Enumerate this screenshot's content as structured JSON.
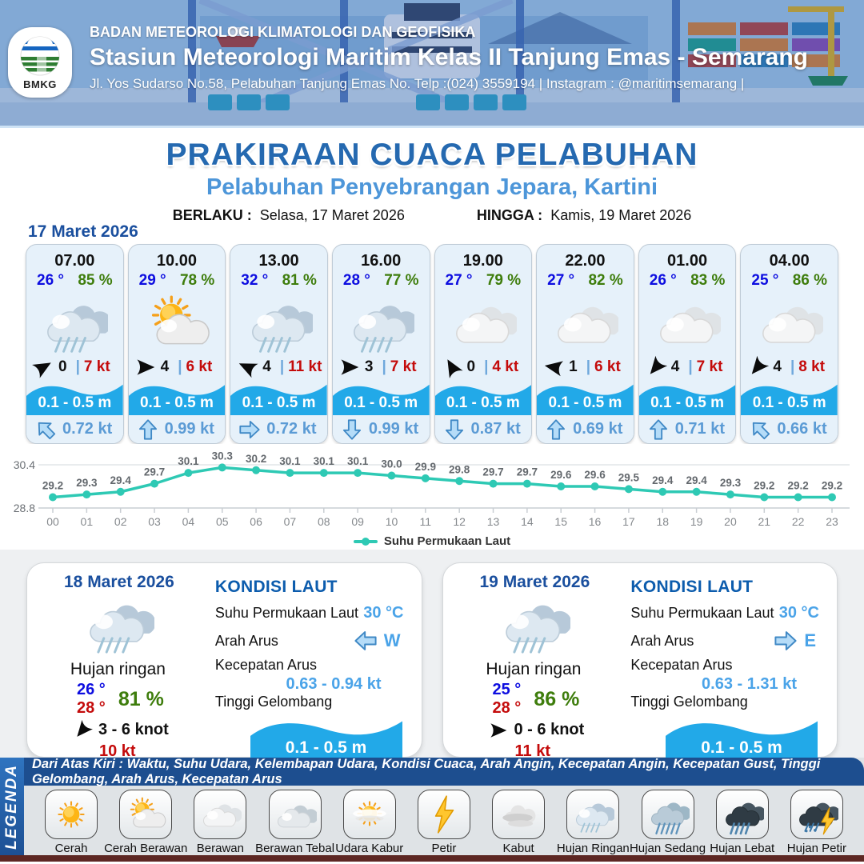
{
  "header": {
    "logo_label": "BMKG",
    "agency": "BADAN METEOROLOGI KLIMATOLOGI DAN GEOFISIKA",
    "station": "Stasiun Meteorologi Maritim Kelas II Tanjung Emas - Semarang",
    "address": "Jl. Yos Sudarso No.58, Pelabuhan Tanjung Emas No. Telp :(024) 3559194 | Instagram : @maritimsemarang |"
  },
  "title": {
    "main": "PRAKIRAAN CUACA PELABUHAN",
    "subtitle": "Pelabuhan Penyebrangan Jepara, Kartini",
    "valid_from_label": "BERLAKU :",
    "valid_from": "Selasa, 17 Maret 2026",
    "valid_to_label": "HINGGA :",
    "valid_to": "Kamis, 19 Maret 2026"
  },
  "ui": {
    "wind_sep": "|"
  },
  "forecast": {
    "date": "17 Maret 2026",
    "cards": [
      {
        "time": "07.00",
        "temp": "26 °",
        "humidity": "85 %",
        "icon": "hujan-ringan",
        "wind_dir_deg": -30,
        "wind": "0",
        "gust": "7 kt",
        "wave": "0.1 - 0.5 m",
        "current_dir_deg": -45,
        "current": "0.72 kt"
      },
      {
        "time": "10.00",
        "temp": "29 °",
        "humidity": "78 %",
        "icon": "cerah-berawan",
        "wind_dir_deg": 0,
        "wind": "4",
        "gust": "6 kt",
        "wave": "0.1 - 0.5 m",
        "current_dir_deg": 0,
        "current": "0.99 kt"
      },
      {
        "time": "13.00",
        "temp": "32 °",
        "humidity": "81 %",
        "icon": "hujan-ringan",
        "wind_dir_deg": 205,
        "wind": "4",
        "gust": "11 kt",
        "wave": "0.1 - 0.5 m",
        "current_dir_deg": 90,
        "current": "0.72 kt"
      },
      {
        "time": "16.00",
        "temp": "28 °",
        "humidity": "77 %",
        "icon": "hujan-ringan",
        "wind_dir_deg": 0,
        "wind": "3",
        "gust": "7 kt",
        "wave": "0.1 - 0.5 m",
        "current_dir_deg": 180,
        "current": "0.99 kt"
      },
      {
        "time": "19.00",
        "temp": "27 °",
        "humidity": "79 %",
        "icon": "berawan",
        "wind_dir_deg": -120,
        "wind": "0",
        "gust": "4 kt",
        "wave": "0.1 - 0.5 m",
        "current_dir_deg": 180,
        "current": "0.87 kt"
      },
      {
        "time": "22.00",
        "temp": "27 °",
        "humidity": "82 %",
        "icon": "berawan",
        "wind_dir_deg": 190,
        "wind": "1",
        "gust": "6 kt",
        "wave": "0.1 - 0.5 m",
        "current_dir_deg": 0,
        "current": "0.69 kt"
      },
      {
        "time": "01.00",
        "temp": "26 °",
        "humidity": "83 %",
        "icon": "berawan",
        "wind_dir_deg": 130,
        "wind": "4",
        "gust": "7 kt",
        "wave": "0.1 - 0.5 m",
        "current_dir_deg": 0,
        "current": "0.71 kt"
      },
      {
        "time": "04.00",
        "temp": "25 °",
        "humidity": "86 %",
        "icon": "berawan",
        "wind_dir_deg": 130,
        "wind": "4",
        "gust": "8 kt",
        "wave": "0.1 - 0.5 m",
        "current_dir_deg": -45,
        "current": "0.66 kt"
      }
    ]
  },
  "chart_data": {
    "type": "line",
    "x": [
      "00",
      "01",
      "02",
      "03",
      "04",
      "05",
      "06",
      "07",
      "08",
      "09",
      "10",
      "11",
      "12",
      "13",
      "14",
      "15",
      "16",
      "17",
      "18",
      "19",
      "20",
      "21",
      "22",
      "23"
    ],
    "series": [
      {
        "name": "Suhu Permukaan Laut",
        "values": [
          29.2,
          29.3,
          29.4,
          29.7,
          30.1,
          30.3,
          30.2,
          30.1,
          30.1,
          30.1,
          30.0,
          29.9,
          29.8,
          29.7,
          29.7,
          29.6,
          29.6,
          29.5,
          29.4,
          29.4,
          29.3,
          29.2,
          29.2,
          29.2
        ]
      }
    ],
    "ylim": [
      28.8,
      30.4
    ],
    "y_tick_labels": [
      "30.4",
      "28.8"
    ],
    "line_color": "#2ec9b4",
    "grid": "top-and-bottom-only",
    "legend_position": "bottom"
  },
  "summary": {
    "sea_heading": "KONDISI LAUT",
    "labels": {
      "sst": "Suhu Permukaan Laut",
      "current_dir": "Arah Arus",
      "current_speed": "Kecepatan Arus",
      "wave_height": "Tinggi Gelombang"
    },
    "days": [
      {
        "date": "18 Maret 2026",
        "condition": "Hujan ringan",
        "icon": "hujan-ringan",
        "temp_min": "26 °",
        "temp_max": "28 °",
        "humidity": "81 %",
        "wind_dir_deg": 130,
        "wind_range": "3  - 6 knot",
        "gust": "10 kt",
        "sst": "30 °C",
        "current_dir_deg": -90,
        "current_dir": "W",
        "current_speed": "0.63 - 0.94 kt",
        "wave": "0.1 - 0.5 m"
      },
      {
        "date": "19 Maret 2026",
        "condition": "Hujan ringan",
        "icon": "hujan-ringan",
        "temp_min": "25 °",
        "temp_max": "28 °",
        "humidity": "86 %",
        "wind_dir_deg": 0,
        "wind_range": "0  - 6 knot",
        "gust": "11 kt",
        "sst": "30 °C",
        "current_dir_deg": 90,
        "current_dir": "E",
        "current_speed": "0.63 - 1.31 kt",
        "wave": "0.1 - 0.5 m"
      }
    ]
  },
  "legend": {
    "title": "LEGENDA",
    "description": "Dari Atas Kiri : Waktu, Suhu Udara, Kelembapan Udara, Kondisi Cuaca, Arah Angin, Kecepatan Angin, Kecepatan Gust, Tinggi Gelombang, Arah Arus, Kecepatan Arus",
    "items": [
      {
        "label": "Cerah",
        "icon": "cerah"
      },
      {
        "label": "Cerah Berawan",
        "icon": "cerah-berawan"
      },
      {
        "label": "Berawan",
        "icon": "berawan"
      },
      {
        "label": "Berawan Tebal",
        "icon": "berawan-tebal"
      },
      {
        "label": "Udara Kabur",
        "icon": "udara-kabur"
      },
      {
        "label": "Petir",
        "icon": "petir"
      },
      {
        "label": "Kabut",
        "icon": "kabut"
      },
      {
        "label": "Hujan Ringan",
        "icon": "hujan-ringan"
      },
      {
        "label": "Hujan Sedang",
        "icon": "hujan-sedang"
      },
      {
        "label": "Hujan Lebat",
        "icon": "hujan-lebat"
      },
      {
        "label": "Hujan Petir",
        "icon": "hujan-petir"
      }
    ]
  },
  "colors": {
    "accent_blue": "#2569b0",
    "light_blue": "#4d96d9",
    "temp_blue": "#0d0de0",
    "humidity_green": "#3e7d0c",
    "gust_red": "#c40b0b",
    "wave_blue": "#22a9e8",
    "chart_teal": "#2ec9b4",
    "legend_bar_blue": "#2f74c0",
    "footer_maroon": "#5d2723"
  }
}
